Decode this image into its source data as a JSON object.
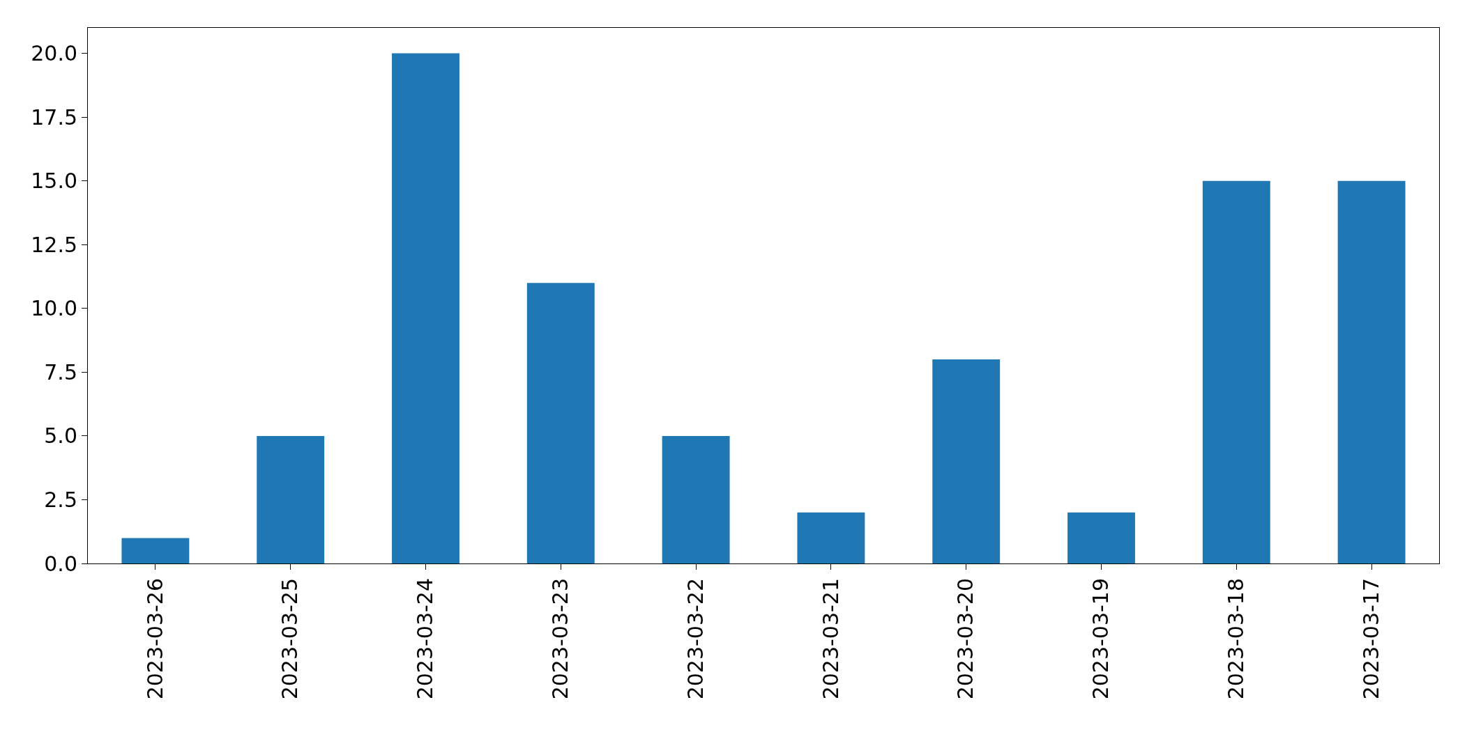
{
  "chart_data": {
    "type": "bar",
    "categories": [
      "2023-03-26",
      "2023-03-25",
      "2023-03-24",
      "2023-03-23",
      "2023-03-22",
      "2023-03-21",
      "2023-03-20",
      "2023-03-19",
      "2023-03-18",
      "2023-03-17"
    ],
    "values": [
      1,
      5,
      20,
      11,
      5,
      2,
      8,
      2,
      15,
      15
    ],
    "color": "#1f77b4",
    "ylim": [
      0,
      21
    ],
    "yticks": [
      {
        "value": 0,
        "label": "0.0"
      },
      {
        "value": 2.5,
        "label": "2.5"
      },
      {
        "value": 5,
        "label": "5.0"
      },
      {
        "value": 7.5,
        "label": "7.5"
      },
      {
        "value": 10,
        "label": "10.0"
      },
      {
        "value": 12.5,
        "label": "12.5"
      },
      {
        "value": 15,
        "label": "15.0"
      },
      {
        "value": 17.5,
        "label": "17.5"
      },
      {
        "value": 20,
        "label": "20.0"
      }
    ],
    "grid": false
  }
}
